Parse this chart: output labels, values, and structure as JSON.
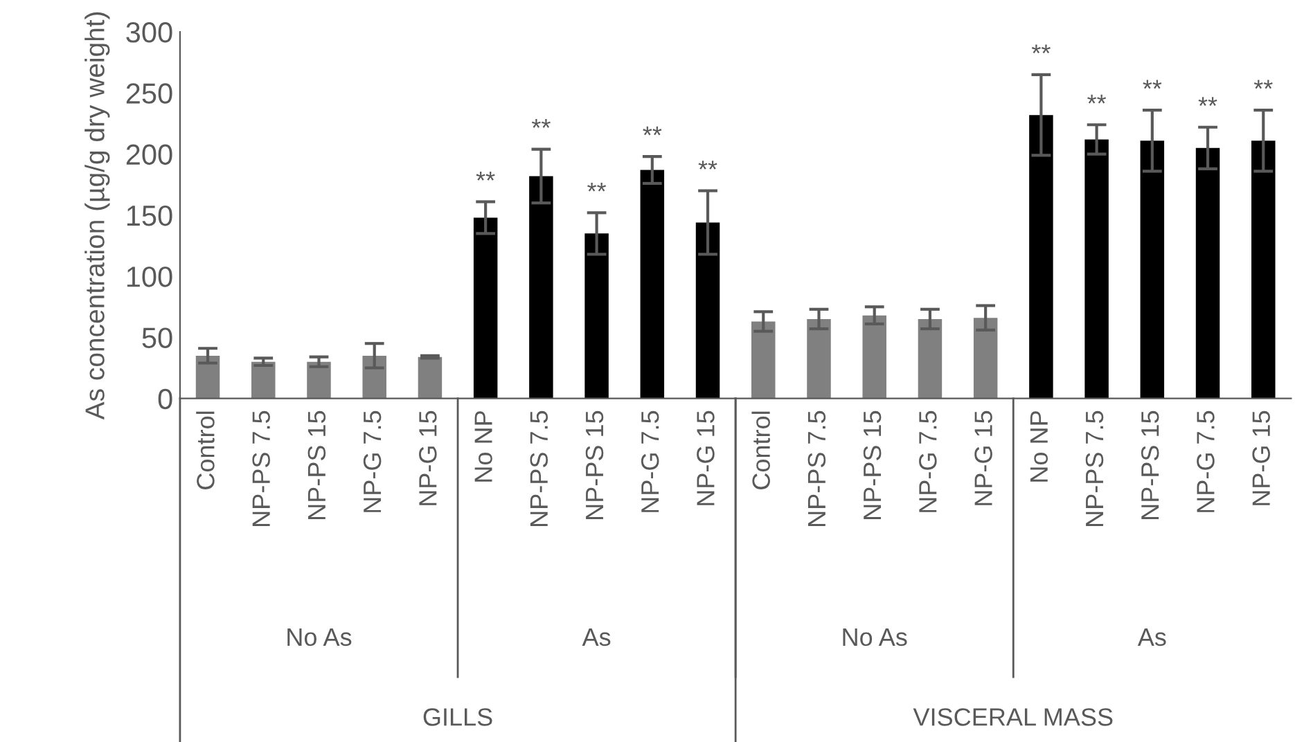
{
  "chart_data": {
    "type": "bar",
    "ylabel": "As concentration (µg/g dry weight)",
    "categories": [
      "Control",
      "NP-PS 7.5",
      "NP-PS 15",
      "NP-G 7.5",
      "NP-G 15",
      "No NP",
      "NP-PS 7.5",
      "NP-PS 15",
      "NP-G 7.5",
      "NP-G 15",
      "Control",
      "NP-PS 7.5",
      "NP-PS 15",
      "NP-G 7.5",
      "NP-G 15",
      "No NP",
      "NP-PS 7.5",
      "NP-PS 15",
      "NP-G 7.5",
      "NP-G 15"
    ],
    "values": [
      35,
      30,
      30,
      35,
      34,
      148,
      182,
      135,
      187,
      144,
      63,
      65,
      68,
      65,
      66,
      232,
      212,
      211,
      205,
      211
    ],
    "errors": [
      6,
      3,
      4,
      10,
      1,
      13,
      22,
      17,
      11,
      26,
      8,
      8,
      7,
      8,
      10,
      33,
      12,
      25,
      17,
      25
    ],
    "colors": [
      "#808080",
      "#808080",
      "#808080",
      "#808080",
      "#808080",
      "#000000",
      "#000000",
      "#000000",
      "#000000",
      "#000000",
      "#808080",
      "#808080",
      "#808080",
      "#808080",
      "#808080",
      "#000000",
      "#000000",
      "#000000",
      "#000000",
      "#000000"
    ],
    "value_labels": [
      null,
      null,
      null,
      null,
      null,
      "**",
      "**",
      "**",
      "**",
      "**",
      null,
      null,
      null,
      null,
      null,
      "**",
      "**",
      "**",
      "**",
      "**"
    ],
    "annotations": [
      "No As",
      "As",
      "No As",
      "As",
      "GILLS",
      "VISCERAL MASS"
    ],
    "ylim": [
      0,
      300
    ],
    "yticks": [
      0,
      50,
      100,
      150,
      200,
      250,
      300
    ],
    "grid": false,
    "legend": false
  }
}
